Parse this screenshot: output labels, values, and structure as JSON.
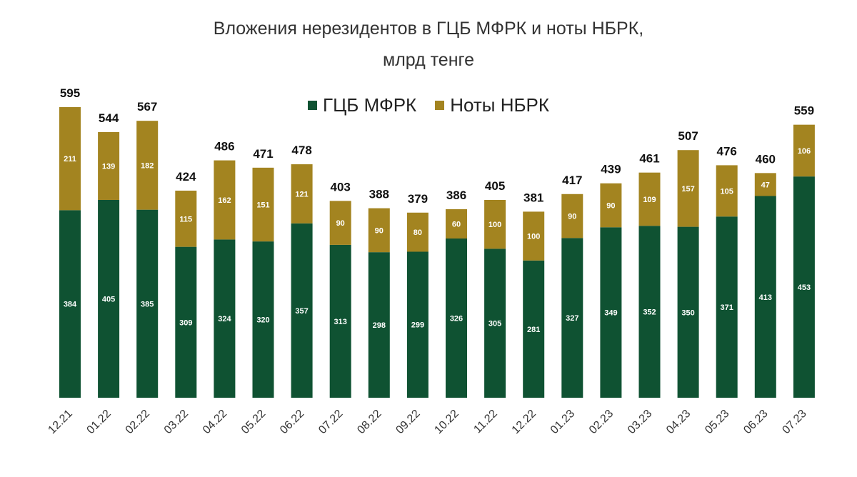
{
  "chart_data": {
    "type": "bar",
    "stacked": true,
    "title_line1": "Вложения нерезидентов в ГЦБ МФРК и ноты НБРК,",
    "title_line2": "млрд тенге",
    "categories": [
      "12.21",
      "01.22",
      "02.22",
      "03.22",
      "04.22",
      "05.22",
      "06.22",
      "07.22",
      "08.22",
      "09.22",
      "10.22",
      "11.22",
      "12.22",
      "01.23",
      "02.23",
      "03.23",
      "04.23",
      "05.23",
      "06.23",
      "07.23"
    ],
    "series": [
      {
        "name": "ГЦБ МФРК",
        "color": "#0f5232",
        "values": [
          384,
          405,
          385,
          309,
          324,
          320,
          357,
          313,
          298,
          299,
          326,
          305,
          281,
          327,
          349,
          352,
          350,
          371,
          413,
          453
        ]
      },
      {
        "name": "Ноты НБРК",
        "color": "#a38420",
        "values": [
          211,
          139,
          182,
          115,
          162,
          151,
          121,
          90,
          90,
          80,
          60,
          100,
          100,
          90,
          90,
          109,
          157,
          105,
          47,
          106
        ]
      }
    ],
    "totals": [
      595,
      544,
      567,
      424,
      486,
      471,
      478,
      403,
      388,
      379,
      386,
      405,
      381,
      417,
      439,
      461,
      507,
      476,
      460,
      559
    ],
    "ylim": [
      0,
      600
    ],
    "legend_position": "top-center"
  }
}
